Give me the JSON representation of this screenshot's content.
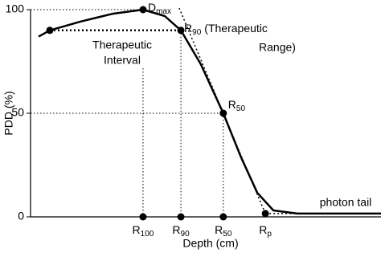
{
  "chart_data": {
    "type": "line",
    "x_label": "Depth (cm)",
    "y_label": "PDD (%)",
    "xlim": [
      0,
      10
    ],
    "ylim": [
      0,
      100
    ],
    "yticks": [
      0,
      50,
      100
    ],
    "series": [
      {
        "color": "#000000",
        "x": [
          0.23,
          0.55,
          1.42,
          2.34,
          3.21,
          3.83,
          4.29,
          4.86,
          5.5,
          6.0,
          6.47,
          6.93,
          7.61,
          10
        ],
        "values": [
          87,
          90,
          94.2,
          98,
          100,
          96.9,
          90,
          73.6,
          50,
          29,
          11.6,
          3.1,
          1.6,
          1.6
        ]
      }
    ],
    "curve_points": [
      {
        "x": 0.55,
        "y": 90
      },
      {
        "x": 3.21,
        "y": 100,
        "label": [
          "D",
          "max"
        ]
      },
      {
        "x": 4.29,
        "y": 90,
        "label": [
          "R",
          "90"
        ],
        "note": [
          "(Therapeutic",
          "Range)"
        ]
      },
      {
        "x": 5.5,
        "y": 50,
        "label": [
          "R",
          "50"
        ]
      }
    ],
    "depth_markers": [
      {
        "x": 3.21,
        "y": 0,
        "label": [
          "R",
          "100"
        ]
      },
      {
        "x": 4.29,
        "y": 0,
        "label": [
          "R",
          "90"
        ]
      },
      {
        "x": 5.5,
        "y": 0,
        "label": [
          "R",
          "50"
        ]
      },
      {
        "x": 6.7,
        "y": 1.6,
        "label": [
          "R",
          "p"
        ]
      }
    ],
    "interval_label": [
      "Therapeutic",
      "Interval"
    ],
    "tail_label": "photon tail"
  }
}
